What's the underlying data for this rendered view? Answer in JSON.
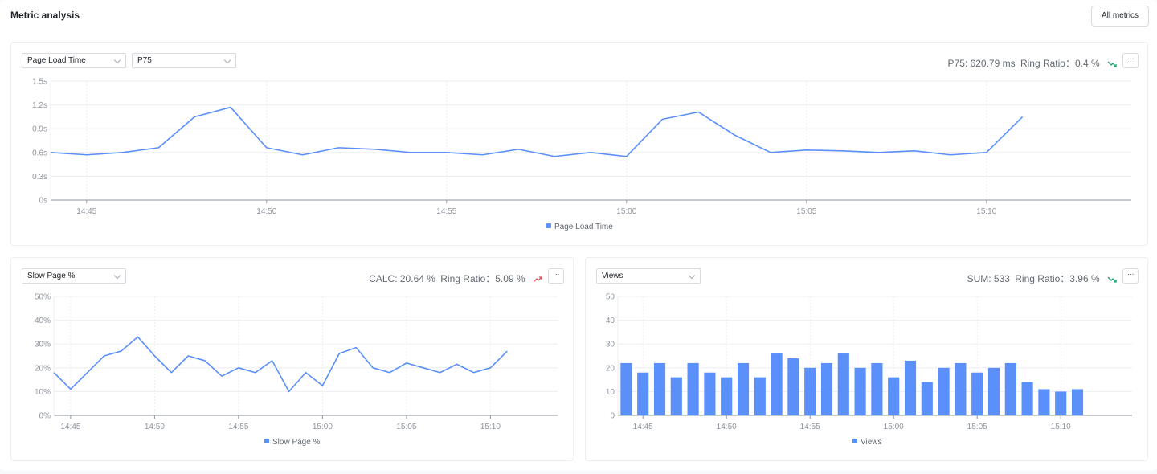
{
  "header": {
    "title": "Metric analysis",
    "all_metrics_label": "All metrics"
  },
  "colors": {
    "series": "#5b8ff9",
    "trend_down": "#20a06b",
    "trend_up": "#e34d59",
    "grid": "#eceef1"
  },
  "panels": {
    "load": {
      "metric_select": "Page Load Time",
      "agg_select": "P75",
      "stat_value": "P75: 620.79 ms",
      "ratio": "Ring Ratio：0.4 %",
      "trend": "down",
      "more_label": "···",
      "legend": "Page Load Time"
    },
    "slow": {
      "metric_select": "Slow Page %",
      "stat_value": "CALC: 20.64 %",
      "ratio": "Ring Ratio：5.09 %",
      "trend": "up",
      "more_label": "···",
      "legend": "Slow Page %"
    },
    "views": {
      "metric_select": "Views",
      "stat_value": "SUM: 533",
      "ratio": "Ring Ratio：3.96 %",
      "trend": "down",
      "more_label": "···",
      "legend": "Views"
    }
  },
  "chart_data": [
    {
      "type": "line",
      "x_ticks": [
        "14:45",
        "14:50",
        "14:55",
        "15:00",
        "15:05",
        "15:10"
      ],
      "y_ticks": [
        "0s",
        "0.3s",
        "0.6s",
        "0.9s",
        "1.2s",
        "1.5s"
      ],
      "ylim": [
        0,
        1.5
      ],
      "x_start": "14:44",
      "series": [
        {
          "name": "Page Load Time",
          "values": [
            0.6,
            0.57,
            0.6,
            0.66,
            1.05,
            1.17,
            0.66,
            0.57,
            0.66,
            0.64,
            0.6,
            0.6,
            0.57,
            0.64,
            0.55,
            0.6,
            0.55,
            1.02,
            1.11,
            0.82,
            0.6,
            0.63,
            0.62,
            0.6,
            0.62,
            0.57,
            0.6,
            1.05
          ]
        }
      ],
      "legend_position": "bottom"
    },
    {
      "type": "line",
      "x_ticks": [
        "14:45",
        "14:50",
        "14:55",
        "15:00",
        "15:05",
        "15:10"
      ],
      "y_ticks": [
        "0%",
        "10%",
        "20%",
        "30%",
        "40%",
        "50%"
      ],
      "ylim": [
        0,
        50
      ],
      "x_start": "14:44",
      "series": [
        {
          "name": "Slow Page %",
          "values": [
            18,
            11,
            18,
            25,
            27,
            33,
            25,
            18,
            25,
            23,
            16.5,
            20,
            18,
            23,
            10,
            18,
            12.5,
            26,
            28.5,
            20,
            18,
            22,
            20,
            18,
            21.5,
            18,
            20,
            27
          ]
        }
      ],
      "legend_position": "bottom"
    },
    {
      "type": "bar",
      "x_ticks": [
        "14:45",
        "14:50",
        "14:55",
        "15:00",
        "15:05",
        "15:10"
      ],
      "y_ticks": [
        "0",
        "10",
        "20",
        "30",
        "40",
        "50"
      ],
      "ylim": [
        0,
        50
      ],
      "x_start": "14:44",
      "series": [
        {
          "name": "Views",
          "values": [
            22,
            18,
            22,
            16,
            22,
            18,
            16,
            22,
            16,
            26,
            24,
            20,
            22,
            26,
            20,
            22,
            16,
            23,
            14,
            20,
            22,
            18,
            20,
            22,
            14,
            11,
            10,
            11
          ]
        }
      ],
      "legend_position": "bottom"
    }
  ]
}
